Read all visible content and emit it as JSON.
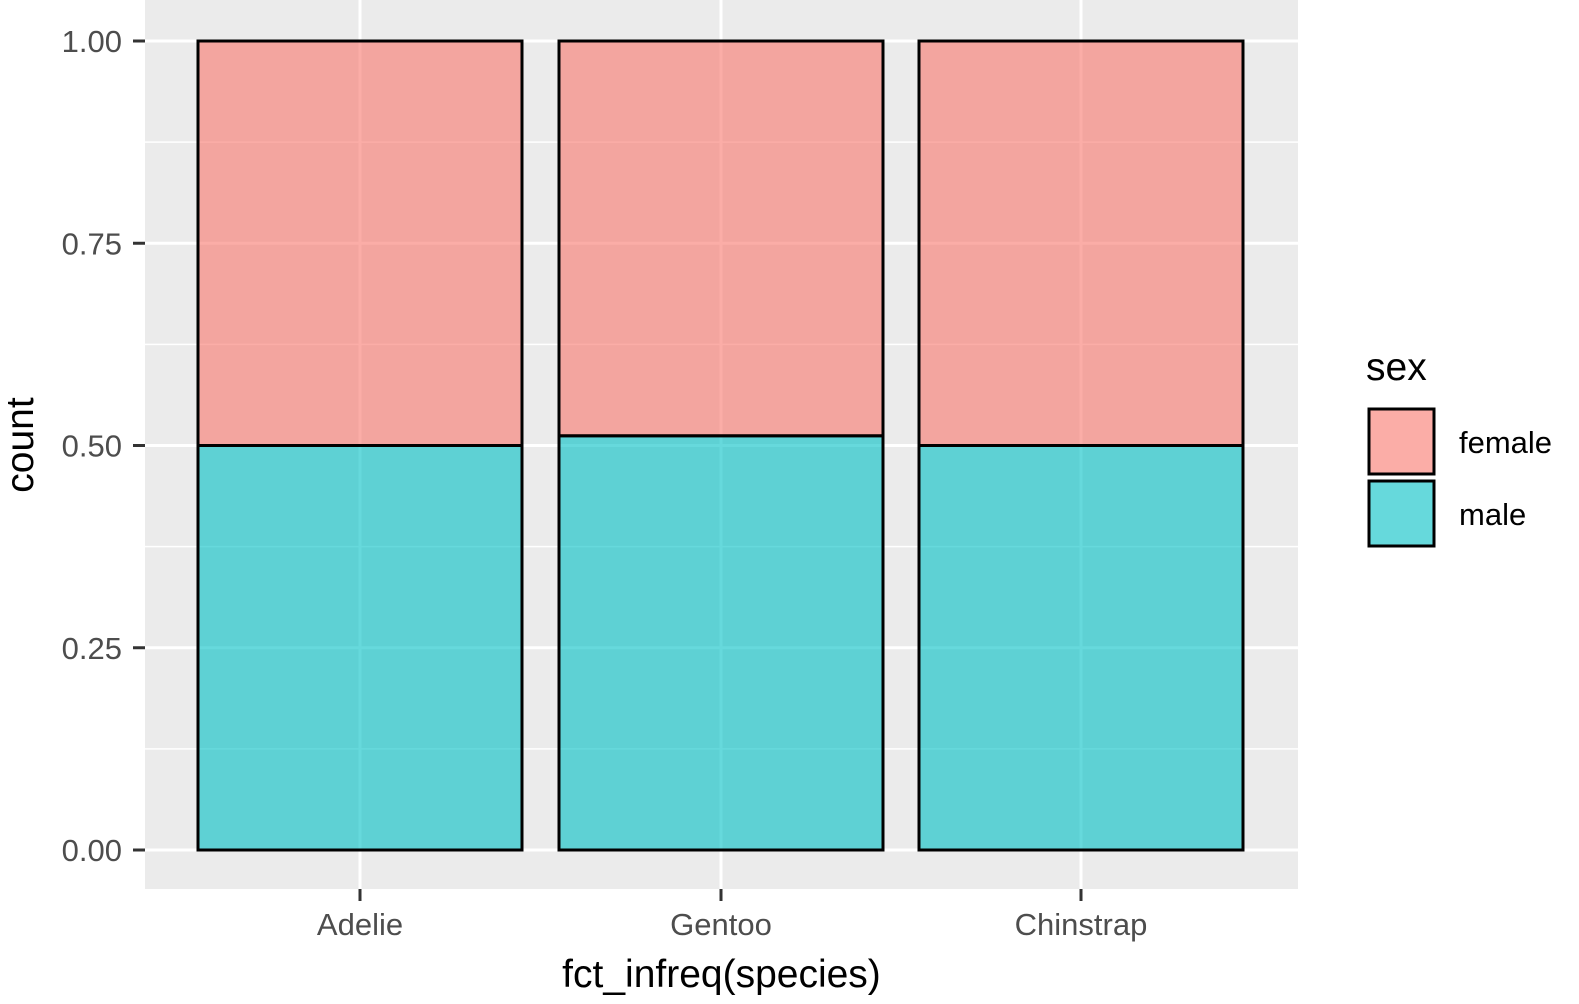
{
  "chart_data": {
    "type": "bar",
    "stacked": "fill",
    "categories": [
      "Adelie",
      "Gentoo",
      "Chinstrap"
    ],
    "series": [
      {
        "name": "female",
        "values": [
          0.5,
          0.488,
          0.5
        ],
        "color": "#F8766D"
      },
      {
        "name": "male",
        "values": [
          0.5,
          0.512,
          0.5
        ],
        "color": "#00BFC4"
      }
    ],
    "bar_alpha": 0.6,
    "xlabel": "fct_infreq(species)",
    "ylabel": "count",
    "ylim": [
      0,
      1
    ],
    "yticks": [
      "0.00",
      "0.25",
      "0.50",
      "0.75",
      "1.00"
    ],
    "ytick_values": [
      0,
      0.25,
      0.5,
      0.75,
      1.0
    ],
    "grid": true,
    "legend": {
      "title": "sex",
      "position": "right"
    },
    "panel_color": "#EBEBEB",
    "gridline_color": "#FFFFFF",
    "bar_outline_color": "#000000"
  }
}
